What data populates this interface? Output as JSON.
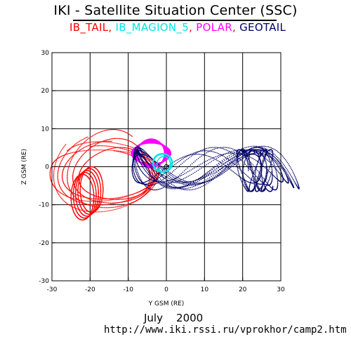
{
  "header": {
    "title": "IKI - Satellite Situation Center (SSC)",
    "satellites": [
      {
        "label": "IB_TAIL",
        "color": "#ff0000"
      },
      {
        "label": ",",
        "color": "#ff0000"
      },
      {
        "label": " IB_MAGION_5",
        "color": "#00e5e5"
      },
      {
        "label": ",",
        "color": "#ff0000"
      },
      {
        "label": " POLAR",
        "color": "#ff00ff"
      },
      {
        "label": ",",
        "color": "#ff0000"
      },
      {
        "label": " GEOTAIL",
        "color": "#000066"
      }
    ]
  },
  "footer": {
    "date": "July    2000",
    "url": "http://www.iki.rssi.ru/vprokhor/camp2.htm"
  },
  "chart_data": {
    "type": "scatter",
    "xlabel": "Y GSM (RE)",
    "ylabel": "Z GSM (RE)",
    "xlim": [
      -30,
      30
    ],
    "ylim": [
      -30,
      30
    ],
    "x_ticks": [
      -30,
      -20,
      -10,
      0,
      10,
      20,
      30
    ],
    "y_ticks": [
      -30,
      -20,
      -10,
      0,
      10,
      20,
      30
    ],
    "grid": true,
    "series": [
      {
        "name": "IB_TAIL",
        "color": "#ff0000",
        "style": "dotted loops",
        "x_range": [
          -28,
          0
        ],
        "y_range": [
          -15,
          8
        ]
      },
      {
        "name": "IB_MAGION_5",
        "color": "#00e5e5",
        "style": "solid small orbit",
        "center": [
          -1,
          1
        ],
        "radius": 2.5
      },
      {
        "name": "POLAR",
        "color": "#ff00ff",
        "style": "dotted dense cloud",
        "x_range": [
          -8,
          1
        ],
        "y_range": [
          -1,
          8
        ]
      },
      {
        "name": "GEOTAIL",
        "color": "#000066",
        "style": "dotted loops",
        "x_range": [
          -12,
          28
        ],
        "y_range": [
          -7,
          6
        ]
      }
    ]
  }
}
